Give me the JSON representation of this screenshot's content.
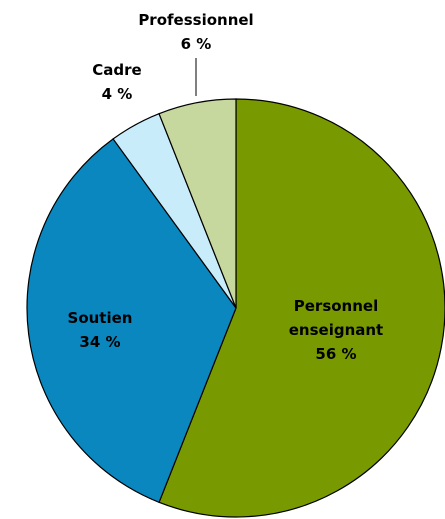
{
  "chart_data": {
    "type": "pie",
    "categories": [
      "Personnel enseignant",
      "Soutien",
      "Cadre",
      "Professionnel"
    ],
    "values": [
      56,
      34,
      4,
      6
    ],
    "value_labels": [
      "56 %",
      "34 %",
      "4 %",
      "6 %"
    ],
    "colors": [
      "#789a00",
      "#0a87bf",
      "#c9ecfa",
      "#c6d89e"
    ]
  }
}
